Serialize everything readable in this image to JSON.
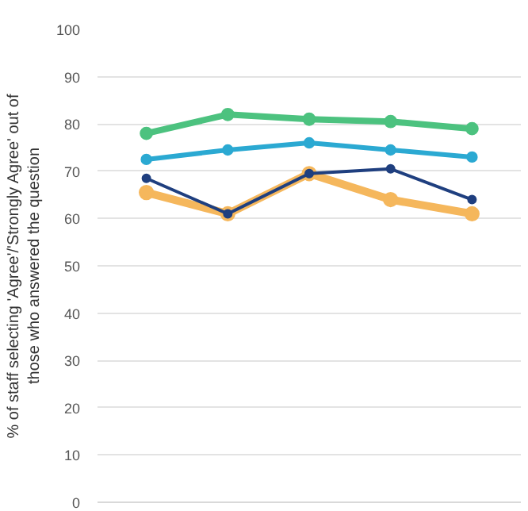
{
  "chart_data": {
    "type": "line",
    "ylabel": "% of staff selecting 'Agree'/'Strongly Agree' out of\nthose who answered the question",
    "categories": [
      null,
      null,
      null,
      null,
      null
    ],
    "series": [
      {
        "color": "#f5b75c",
        "values": [
          65.5,
          61,
          69.5,
          64,
          61
        ]
      },
      {
        "color": "#4cc27f",
        "values": [
          78,
          82,
          81,
          80.5,
          79
        ]
      },
      {
        "color": "#2ba9d2",
        "values": [
          72.5,
          74.5,
          76,
          74.5,
          73
        ]
      },
      {
        "color": "#1f3f7f",
        "values": [
          68.5,
          61,
          69.5,
          70.5,
          64
        ]
      }
    ],
    "ylim": [
      0,
      100
    ],
    "yticks": [
      0,
      10,
      20,
      30,
      40,
      50,
      60,
      70,
      80,
      90,
      100
    ],
    "grid": "y",
    "marker": "circle",
    "line_style": "solid"
  }
}
